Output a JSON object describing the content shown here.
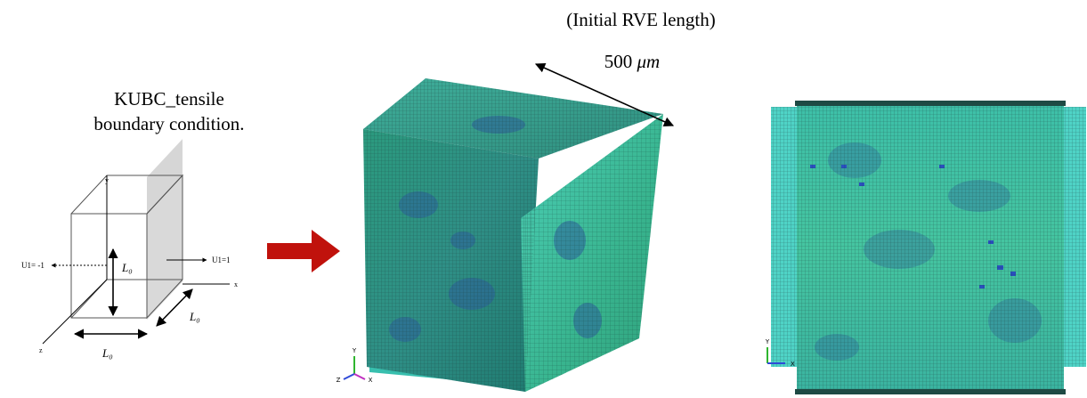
{
  "caption": {
    "lines": [
      "KUBC_tensile",
      "boundary condition."
    ]
  },
  "cube_diagram": {
    "axes": [
      "y",
      "x",
      "z"
    ],
    "loads": [
      "U1= -1",
      "U1=1"
    ],
    "lengths": [
      "L₀",
      "L₀",
      "L₀"
    ]
  },
  "dimension": {
    "note": "(Initial RVE length)",
    "value": "500",
    "unit": "μm"
  },
  "mesh_3d": {
    "triad": [
      "Y",
      "Z",
      "X"
    ]
  },
  "mesh_front": {
    "triad": [
      "Y",
      "X"
    ]
  }
}
